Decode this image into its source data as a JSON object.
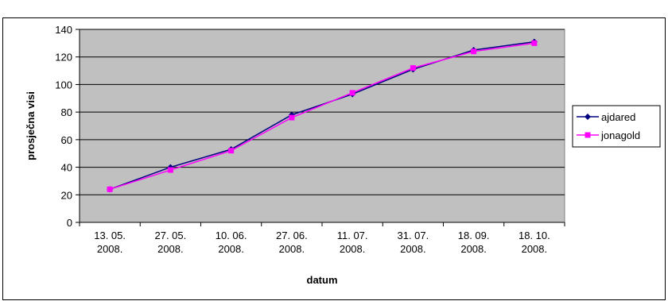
{
  "chart_data": {
    "type": "line",
    "title": "",
    "xlabel": "datum",
    "ylabel": "prosječna visi",
    "categories": [
      [
        "13. 05.",
        "2008."
      ],
      [
        "27. 05.",
        "2008."
      ],
      [
        "10. 06.",
        "2008."
      ],
      [
        "27. 06.",
        "2008."
      ],
      [
        "11. 07.",
        "2008."
      ],
      [
        "31. 07.",
        "2008."
      ],
      [
        "18. 09.",
        "2008."
      ],
      [
        "18. 10.",
        "2008."
      ]
    ],
    "ylim": [
      0,
      140
    ],
    "yticks": [
      0,
      20,
      40,
      60,
      80,
      100,
      120,
      140
    ],
    "grid": true,
    "legend_position": "right",
    "series": [
      {
        "name": "ajdared",
        "values": [
          24,
          40,
          53,
          78,
          93,
          111,
          125,
          131
        ],
        "color": "#000080",
        "marker": "diamond"
      },
      {
        "name": "jonagold",
        "values": [
          24,
          38,
          52,
          76,
          94,
          112,
          124,
          130
        ],
        "color": "#ff00ff",
        "marker": "square"
      }
    ],
    "colors": {
      "plot_background": "#c0c0c0",
      "gridline": "#000000"
    }
  }
}
